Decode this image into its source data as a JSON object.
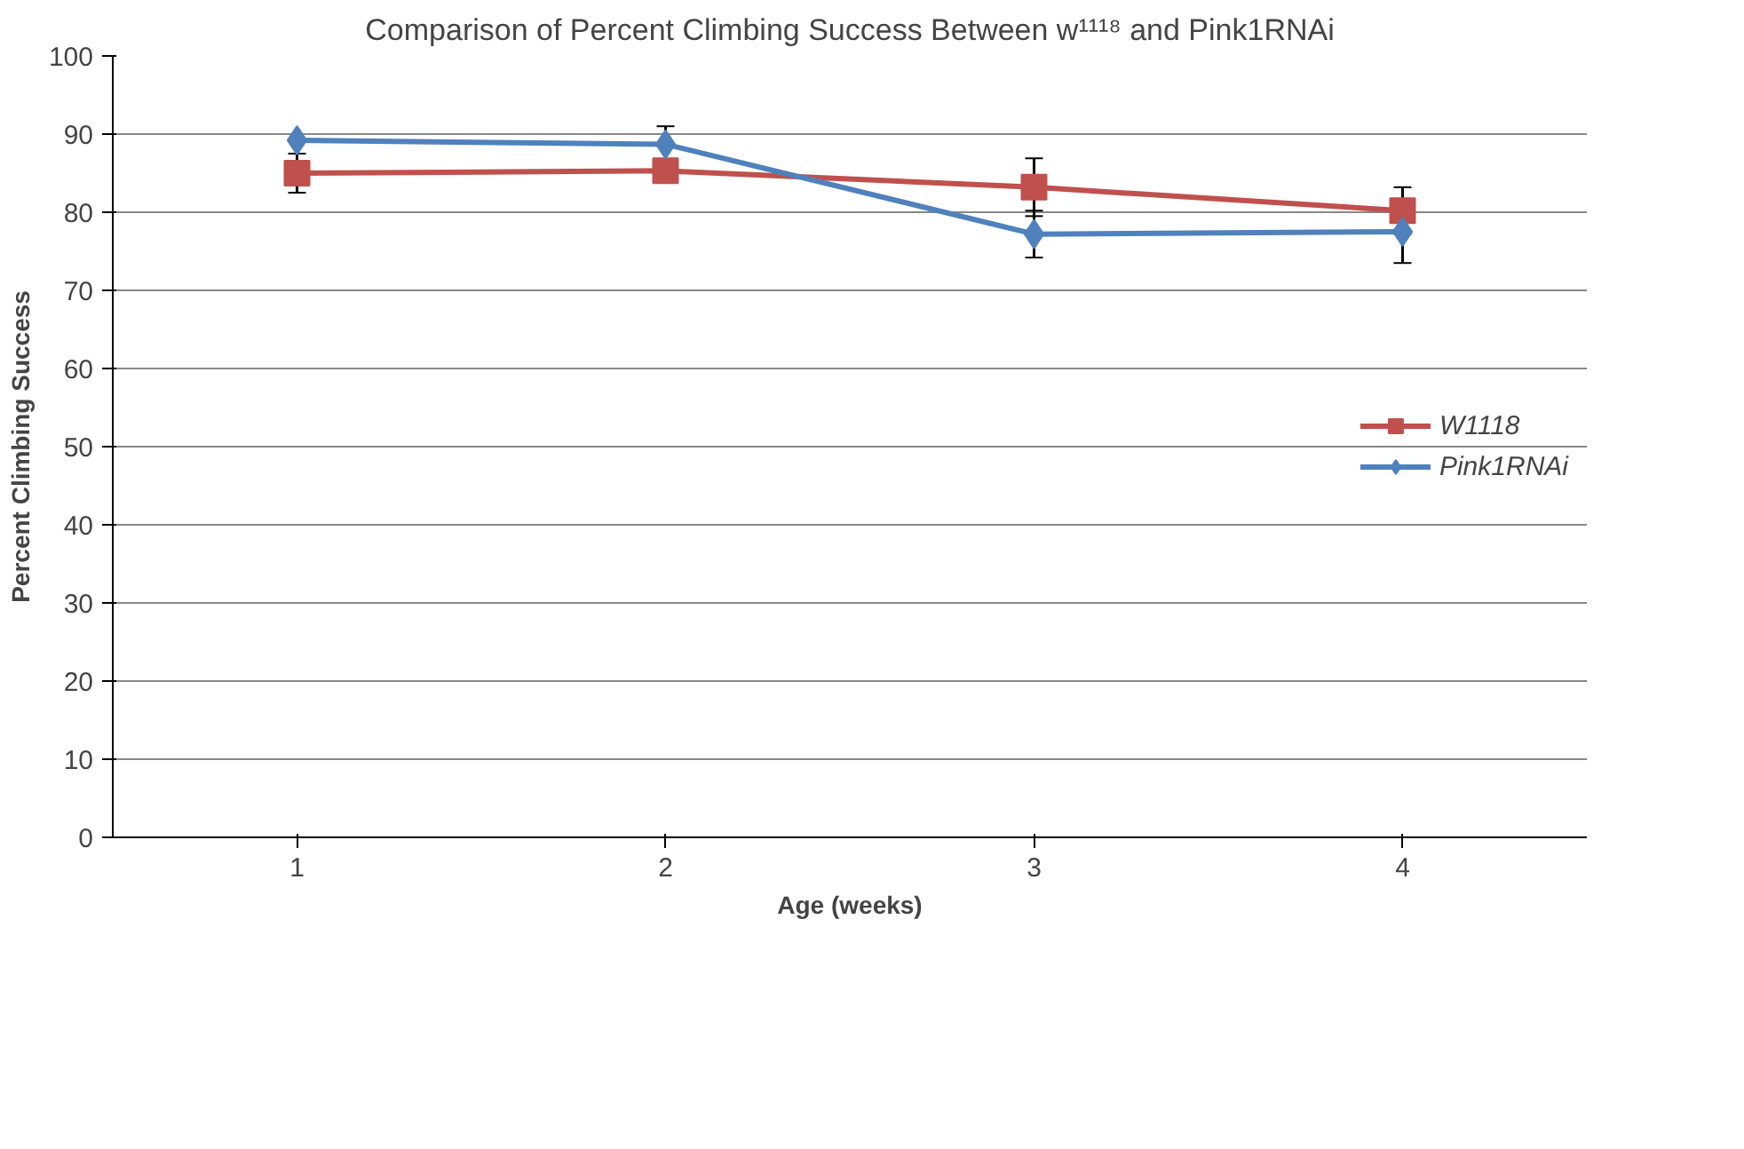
{
  "chart_data": {
    "type": "line",
    "title": "Comparison of Percent Climbing Success Between w¹¹¹⁸ and Pink1RNAi",
    "xlabel": "Age (weeks)",
    "ylabel": "Percent Climbing Success",
    "categories": [
      "1",
      "2",
      "3",
      "4"
    ],
    "ylim": [
      0,
      100
    ],
    "yticks": [
      0,
      10,
      20,
      30,
      40,
      50,
      60,
      70,
      80,
      90,
      100
    ],
    "grid": "y",
    "legend": "right",
    "series": [
      {
        "name": "W1118",
        "color": "#c0504d",
        "marker": "square",
        "values": [
          85,
          85.3,
          83.2,
          80.2
        ],
        "errors": [
          2.5,
          null,
          3.7,
          3
        ]
      },
      {
        "name": "Pink1RNAi",
        "color": "#4f81bd",
        "marker": "diamond",
        "values": [
          89.2,
          88.7,
          77.2,
          77.5
        ],
        "errors": [
          null,
          2.3,
          3,
          4
        ]
      }
    ]
  }
}
